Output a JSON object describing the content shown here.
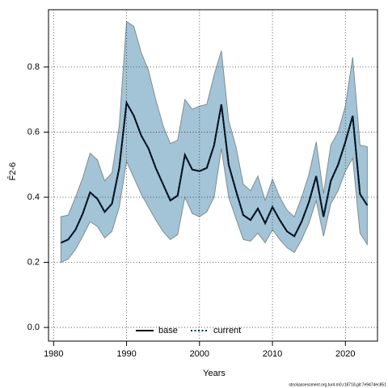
{
  "chart_data": {
    "type": "line",
    "xlabel": "Years",
    "ylabel": "F̄2-6",
    "footnote": "stockassessment.org,tur4.m0,r18718,git:7e947dec851",
    "x": [
      1981,
      1982,
      1983,
      1984,
      1985,
      1986,
      1987,
      1988,
      1989,
      1990,
      1991,
      1992,
      1993,
      1994,
      1995,
      1996,
      1997,
      1998,
      1999,
      2000,
      2001,
      2002,
      2003,
      2004,
      2005,
      2006,
      2007,
      2008,
      2009,
      2010,
      2011,
      2012,
      2013,
      2014,
      2015,
      2016,
      2017,
      2018,
      2019,
      2020,
      2021,
      2022,
      2023
    ],
    "series": [
      {
        "name": "base",
        "color": "#000000",
        "dash": false,
        "values": [
          0.26,
          0.27,
          0.3,
          0.35,
          0.415,
          0.395,
          0.355,
          0.38,
          0.49,
          0.69,
          0.65,
          0.59,
          0.55,
          0.49,
          0.44,
          0.39,
          0.405,
          0.53,
          0.485,
          0.48,
          0.49,
          0.56,
          0.685,
          0.5,
          0.42,
          0.345,
          0.33,
          0.365,
          0.32,
          0.37,
          0.33,
          0.295,
          0.28,
          0.325,
          0.385,
          0.465,
          0.34,
          0.45,
          0.5,
          0.57,
          0.65,
          0.41,
          0.375
        ]
      },
      {
        "name": "current",
        "color": "#00264d",
        "dash": true,
        "values": [
          0.26,
          0.27,
          0.3,
          0.35,
          0.415,
          0.395,
          0.355,
          0.38,
          0.49,
          0.69,
          0.65,
          0.59,
          0.55,
          0.49,
          0.44,
          0.39,
          0.405,
          0.53,
          0.485,
          0.48,
          0.49,
          0.56,
          0.685,
          0.5,
          0.42,
          0.345,
          0.33,
          0.365,
          0.32,
          0.37,
          0.33,
          0.295,
          0.28,
          0.325,
          0.385,
          0.465,
          0.34,
          0.45,
          0.5,
          0.57,
          0.65,
          0.41,
          0.375
        ]
      }
    ],
    "band": {
      "color": "#a3c4d6",
      "lower": [
        0.2,
        0.21,
        0.24,
        0.28,
        0.325,
        0.31,
        0.275,
        0.295,
        0.37,
        0.51,
        0.46,
        0.41,
        0.37,
        0.33,
        0.295,
        0.27,
        0.285,
        0.4,
        0.35,
        0.34,
        0.355,
        0.4,
        0.55,
        0.4,
        0.335,
        0.27,
        0.265,
        0.29,
        0.26,
        0.3,
        0.27,
        0.245,
        0.23,
        0.27,
        0.32,
        0.39,
        0.28,
        0.38,
        0.42,
        0.48,
        0.52,
        0.29,
        0.255
      ],
      "upper": [
        0.34,
        0.345,
        0.4,
        0.46,
        0.535,
        0.515,
        0.45,
        0.475,
        0.62,
        0.94,
        0.925,
        0.845,
        0.79,
        0.7,
        0.62,
        0.565,
        0.575,
        0.7,
        0.67,
        0.68,
        0.685,
        0.775,
        0.85,
        0.635,
        0.555,
        0.44,
        0.42,
        0.465,
        0.39,
        0.455,
        0.4,
        0.36,
        0.34,
        0.4,
        0.47,
        0.57,
        0.41,
        0.56,
        0.6,
        0.68,
        0.83,
        0.56,
        0.555
      ]
    },
    "xlim": [
      1979.3,
      2024.4
    ],
    "xticks": [
      1980,
      1990,
      2000,
      2010,
      2020
    ],
    "ylim": [
      -0.042,
      0.976
    ],
    "yticks": [
      {
        "value": 0,
        "label": "0.0"
      },
      0.2,
      0.4,
      0.6,
      0.8
    ],
    "grid": true,
    "legend": "bottom"
  }
}
